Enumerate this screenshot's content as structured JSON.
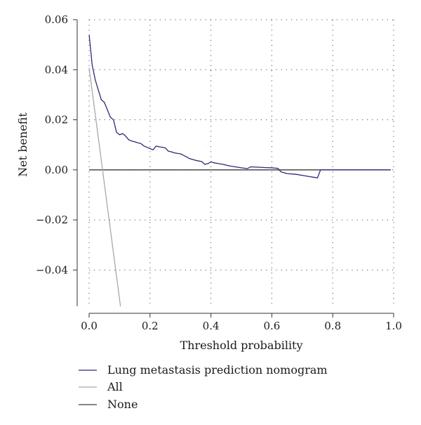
{
  "chart_data": {
    "type": "line",
    "xlabel": "Threshold probability",
    "ylabel": "Net benefit",
    "xlim": [
      0.0,
      1.0
    ],
    "ylim": [
      -0.0545,
      0.06
    ],
    "xticks": [
      0.0,
      0.2,
      0.4,
      0.6,
      0.8,
      1.0
    ],
    "xtick_labels": [
      "0.0",
      "0.2",
      "0.4",
      "0.6",
      "0.8",
      "1.0"
    ],
    "yticks": [
      0.06,
      0.04,
      0.02,
      0.0,
      -0.02,
      -0.04
    ],
    "ytick_labels": [
      "0.06",
      "0.04",
      "0.02",
      "0.00",
      "−0.02",
      "−0.04"
    ],
    "grid": true,
    "legend_position": "bottom-left, below plot",
    "series": [
      {
        "name": "Lung metastasis prediction nomogram",
        "color": "#2a2a7a",
        "x": [
          0.0,
          0.005,
          0.01,
          0.02,
          0.03,
          0.04,
          0.05,
          0.06,
          0.07,
          0.08,
          0.09,
          0.1,
          0.11,
          0.12,
          0.13,
          0.14,
          0.15,
          0.16,
          0.17,
          0.18,
          0.19,
          0.2,
          0.21,
          0.22,
          0.23,
          0.25,
          0.26,
          0.27,
          0.28,
          0.3,
          0.31,
          0.33,
          0.35,
          0.37,
          0.38,
          0.39,
          0.4,
          0.41,
          0.42,
          0.44,
          0.46,
          0.48,
          0.5,
          0.52,
          0.53,
          0.55,
          0.58,
          0.6,
          0.62,
          0.63,
          0.65,
          0.68,
          0.7,
          0.72,
          0.75,
          0.76,
          0.78,
          0.8,
          0.85,
          0.9,
          0.95,
          0.99
        ],
        "y": [
          0.054,
          0.048,
          0.042,
          0.036,
          0.032,
          0.028,
          0.027,
          0.024,
          0.021,
          0.02,
          0.015,
          0.014,
          0.0145,
          0.0135,
          0.012,
          0.0115,
          0.0112,
          0.0108,
          0.0105,
          0.0095,
          0.009,
          0.0085,
          0.008,
          0.0095,
          0.0092,
          0.0088,
          0.0075,
          0.0072,
          0.0068,
          0.0064,
          0.0058,
          0.0045,
          0.0038,
          0.0033,
          0.0022,
          0.0025,
          0.0032,
          0.0028,
          0.0026,
          0.0022,
          0.0016,
          0.0012,
          0.0008,
          0.0005,
          0.0012,
          0.0011,
          0.0009,
          0.0008,
          0.0006,
          -0.0008,
          -0.0015,
          -0.0018,
          -0.0022,
          -0.0026,
          -0.0032,
          0.0,
          0.0,
          0.0,
          0.0,
          0.0,
          0.0,
          0.0
        ]
      },
      {
        "name": "All",
        "color": "#a8a8a8",
        "x": [
          0.0,
          0.103
        ],
        "y": [
          0.0408,
          -0.0545
        ]
      },
      {
        "name": "None",
        "color": "#3a3a3a",
        "x": [
          0.0,
          0.99
        ],
        "y": [
          0.0,
          0.0
        ]
      }
    ]
  }
}
